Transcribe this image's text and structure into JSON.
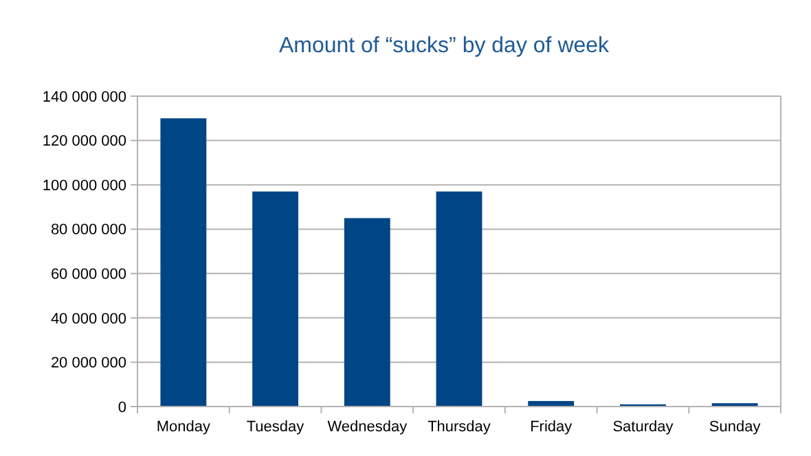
{
  "chart_data": {
    "type": "bar",
    "title": "Amount of “sucks” by day of week",
    "categories": [
      "Monday",
      "Tuesday",
      "Wednesday",
      "Thursday",
      "Friday",
      "Saturday",
      "Sunday"
    ],
    "values": [
      130000000,
      97000000,
      85000000,
      97000000,
      2500000,
      1000000,
      1500000
    ],
    "color": "#004586",
    "ylim": [
      0,
      140000000
    ],
    "yticks": [
      {
        "value": 0,
        "label": "0"
      },
      {
        "value": 20000000,
        "label": "20 000 000"
      },
      {
        "value": 40000000,
        "label": "40 000 000"
      },
      {
        "value": 60000000,
        "label": "60 000 000"
      },
      {
        "value": 80000000,
        "label": "80 000 000"
      },
      {
        "value": 100000000,
        "label": "100 000 000"
      },
      {
        "value": 120000000,
        "label": "120 000 000"
      },
      {
        "value": 140000000,
        "label": "140 000 000"
      }
    ],
    "grid": "y"
  }
}
